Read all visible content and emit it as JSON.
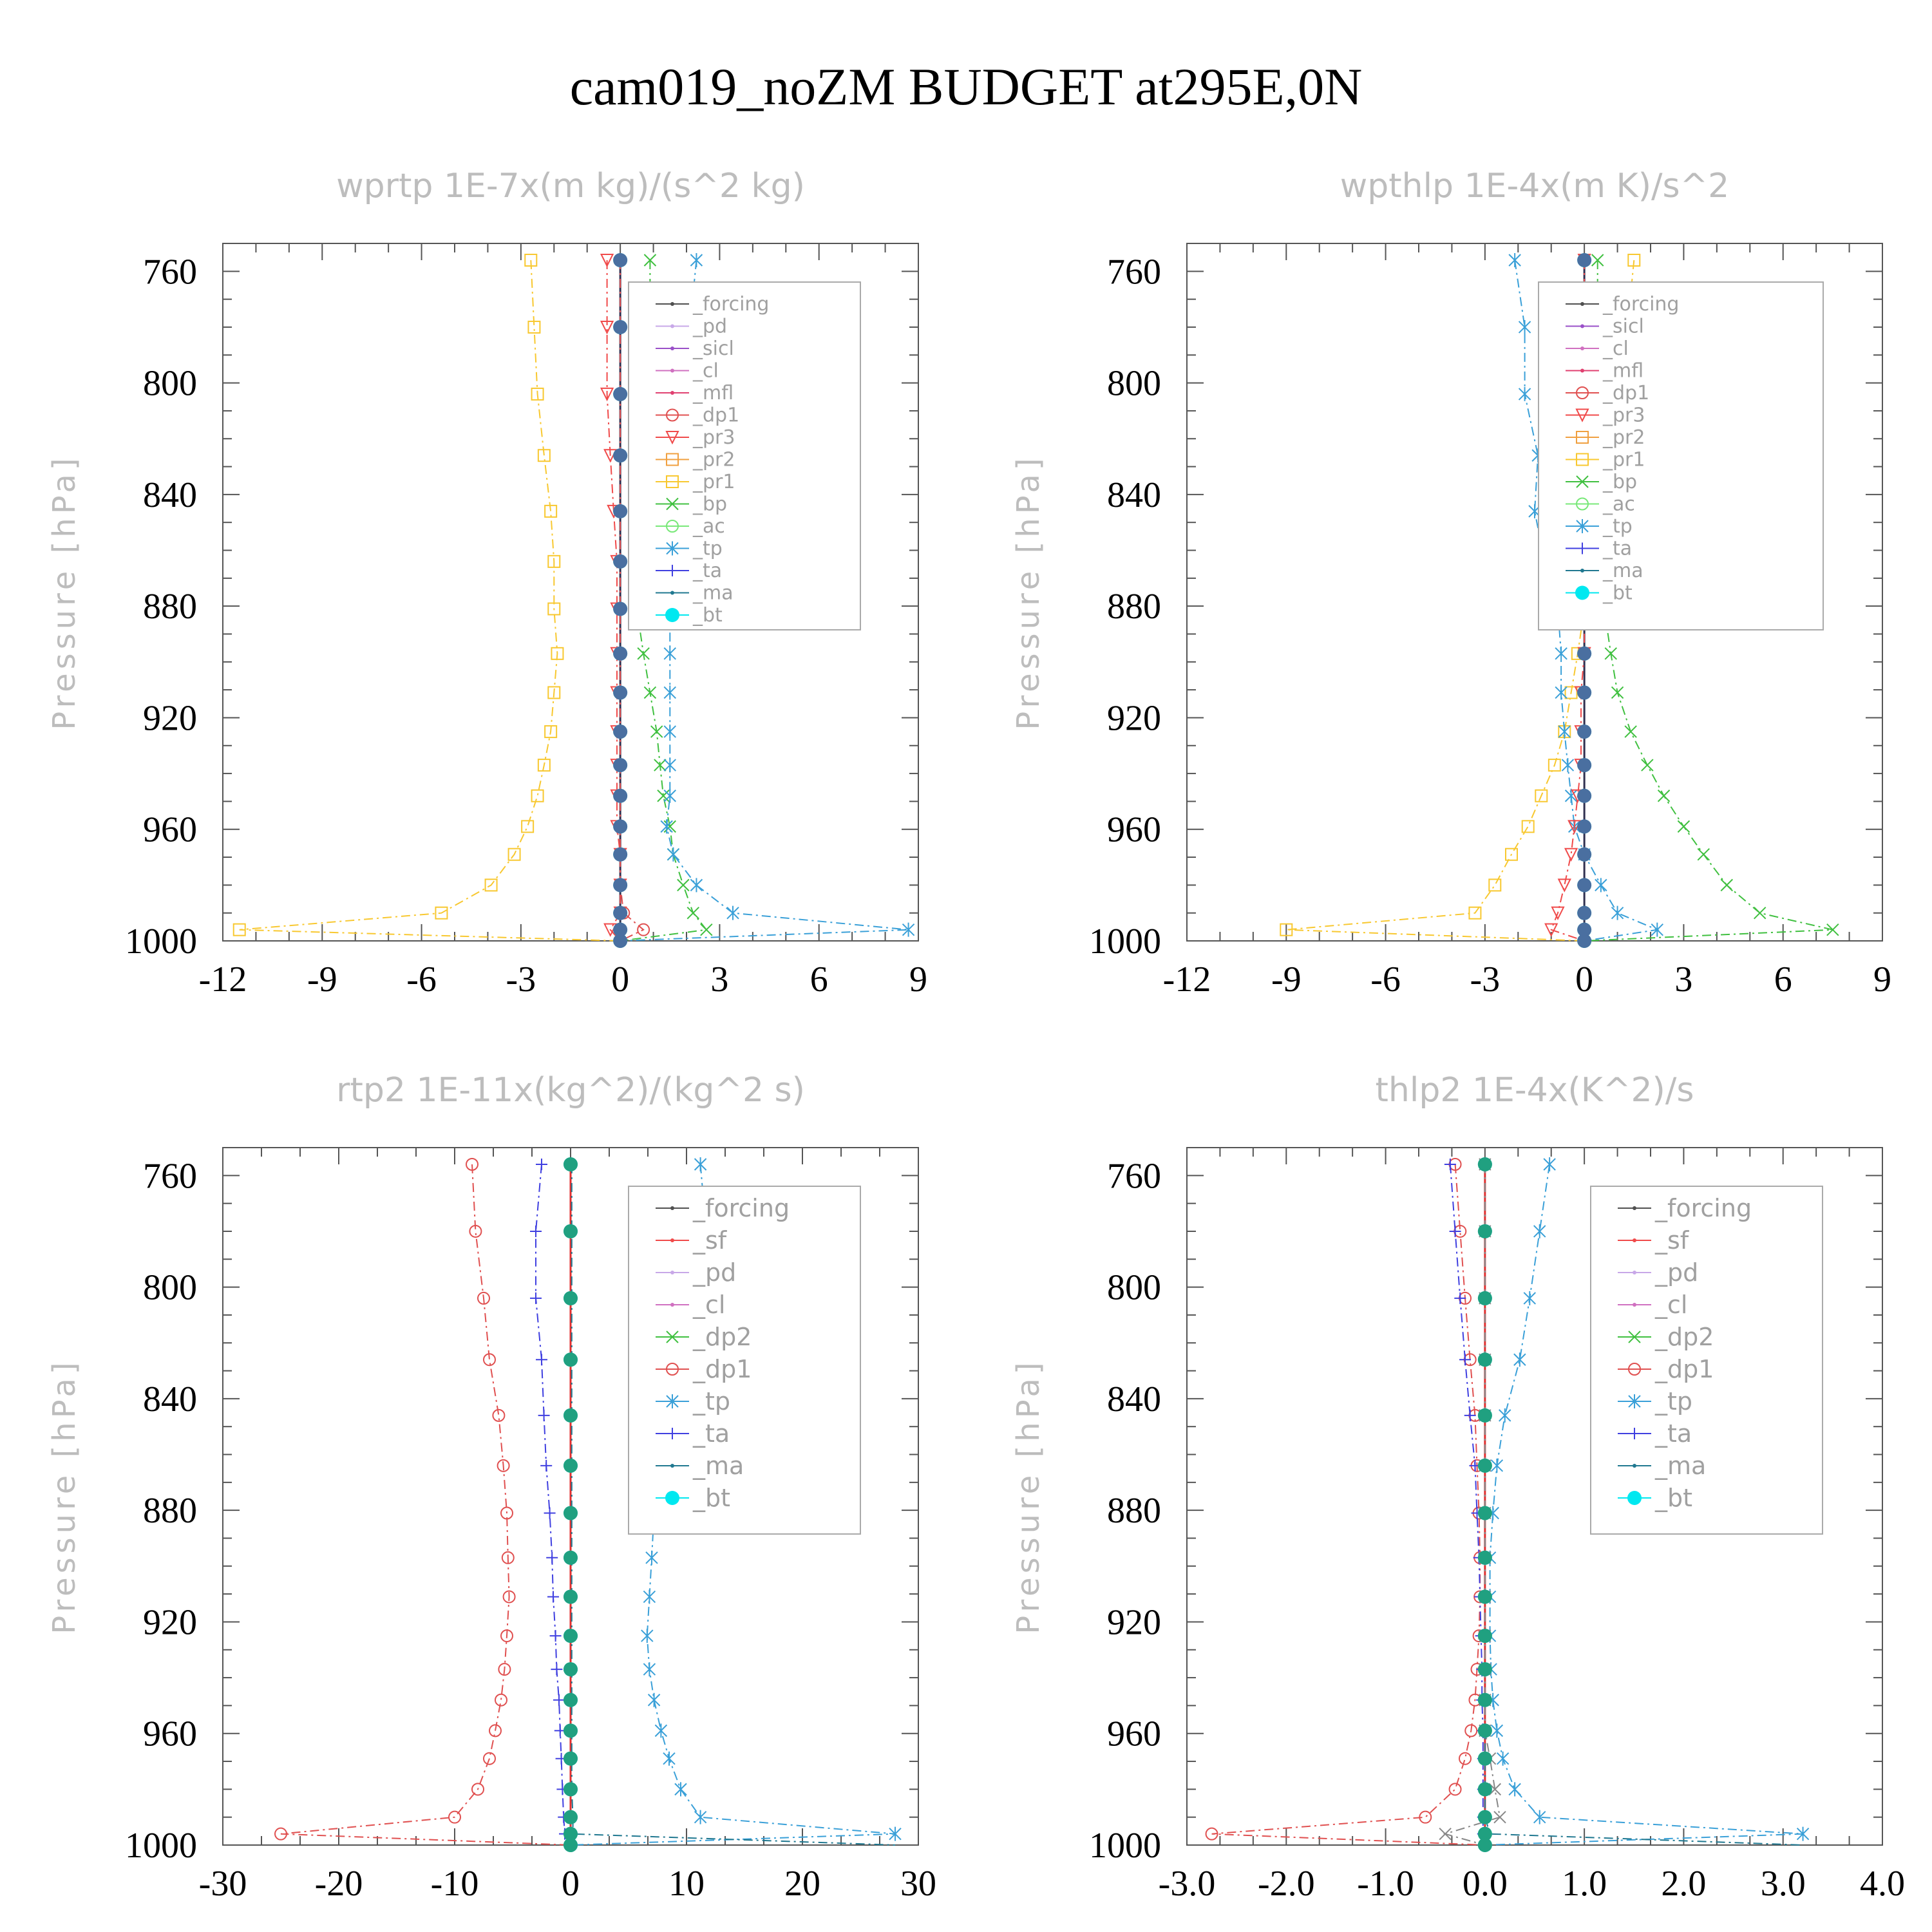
{
  "title": "cam019_noZM  BUDGET at295E,0N",
  "colors": {
    "_forcing": "#505050",
    "_pd": "#c8a8e8",
    "_sicl": "#9a50c8",
    "_cl": "#d070c0",
    "_mfl": "#e04070",
    "_dp1": "#e05050",
    "_pr3": "#f04a4a",
    "_pr2": "#f0a040",
    "_pr1": "#f8c830",
    "_bp": "#40c040",
    "_ac": "#78e878",
    "_tp": "#3aa0d8",
    "_ta": "#4040e0",
    "_ma": "#207890",
    "_bt": "#00e8f0",
    "red": "#e03030",
    "teal": "#20a080",
    "grid": "#555555"
  },
  "chart_data": [
    {
      "type": "line",
      "title": "wprtp   1E-7x(m kg)/(s^2 kg)",
      "ylabel": "Pressure [hPa]",
      "xlim": [
        -12,
        9
      ],
      "xticks": [
        "-12",
        "-9",
        "-6",
        "-3",
        "0",
        "3",
        "6",
        "9"
      ],
      "ylim": [
        1000,
        750
      ],
      "yticks": [
        "760",
        "800",
        "840",
        "880",
        "920",
        "960",
        "1000"
      ],
      "legend": [
        "_forcing",
        "_pd",
        "_sicl",
        "_cl",
        "_mfl",
        "_dp1",
        "_pr3",
        "_pr2",
        "_pr1",
        "_bp",
        "_ac",
        "_tp",
        "_ta",
        "_ma",
        "_bt"
      ],
      "legend_position": "upper right",
      "p": [
        756,
        780,
        804,
        826,
        846,
        864,
        881,
        897,
        911,
        925,
        937,
        948,
        959,
        969,
        980,
        990,
        996,
        1000
      ],
      "series": [
        {
          "name": "_pr1",
          "values": [
            -2.7,
            -2.6,
            -2.5,
            -2.3,
            -2.1,
            -2.0,
            -2.0,
            -1.9,
            -2.0,
            -2.1,
            -2.3,
            -2.5,
            -2.8,
            -3.2,
            -3.9,
            -5.4,
            -11.5,
            0.0
          ]
        },
        {
          "name": "_bp",
          "values": [
            0.9,
            0.9,
            0.9,
            0.6,
            0.5,
            0.5,
            0.5,
            0.7,
            0.9,
            1.1,
            1.2,
            1.3,
            1.5,
            1.6,
            1.9,
            2.2,
            2.6,
            0.0
          ]
        },
        {
          "name": "_tp",
          "values": [
            2.3,
            2.1,
            2.0,
            1.9,
            1.8,
            1.6,
            1.5,
            1.5,
            1.5,
            1.5,
            1.5,
            1.5,
            1.4,
            1.6,
            2.3,
            3.4,
            8.7,
            0.0
          ]
        },
        {
          "name": "_pr3",
          "values": [
            -0.4,
            -0.4,
            -0.4,
            -0.3,
            -0.2,
            -0.1,
            -0.1,
            -0.1,
            -0.1,
            -0.1,
            -0.1,
            -0.1,
            -0.1,
            0.0,
            0.0,
            0.0,
            -0.3,
            0.0
          ]
        },
        {
          "name": "_dp1",
          "values": [
            0.0,
            0.0,
            0.0,
            0.0,
            0.0,
            0.0,
            0.0,
            0.0,
            0.0,
            0.0,
            0.0,
            0.0,
            0.0,
            0.0,
            0.0,
            0.1,
            0.7,
            0.0
          ]
        },
        {
          "name": "_bt",
          "values": [
            0,
            0,
            0,
            0,
            0,
            0,
            0,
            0,
            0,
            0,
            0,
            0,
            0,
            0,
            0,
            0,
            0,
            0
          ]
        }
      ]
    },
    {
      "type": "line",
      "title": "wpthlp   1E-4x(m K)/s^2",
      "ylabel": "Pressure [hPa]",
      "xlim": [
        -12,
        9
      ],
      "xticks": [
        "-12",
        "-9",
        "-6",
        "-3",
        "0",
        "3",
        "6",
        "9"
      ],
      "ylim": [
        1000,
        750
      ],
      "yticks": [
        "760",
        "800",
        "840",
        "880",
        "920",
        "960",
        "1000"
      ],
      "legend": [
        "_forcing",
        "_sicl",
        "_cl",
        "_mfl",
        "_dp1",
        "_pr3",
        "_pr2",
        "_pr1",
        "_bp",
        "_ac",
        "_tp",
        "_ta",
        "_ma",
        "_bt"
      ],
      "legend_position": "upper right",
      "p": [
        756,
        780,
        804,
        826,
        846,
        864,
        881,
        897,
        911,
        925,
        937,
        948,
        959,
        969,
        980,
        990,
        996,
        1000
      ],
      "series": [
        {
          "name": "_pr1",
          "values": [
            1.5,
            1.3,
            1.0,
            0.7,
            0.4,
            0.2,
            0.0,
            -0.2,
            -0.4,
            -0.6,
            -0.9,
            -1.3,
            -1.7,
            -2.2,
            -2.7,
            -3.3,
            -9.0,
            0.0
          ]
        },
        {
          "name": "_bp",
          "values": [
            0.4,
            0.4,
            0.3,
            0.3,
            0.4,
            0.5,
            0.6,
            0.8,
            1.0,
            1.4,
            1.9,
            2.4,
            3.0,
            3.6,
            4.3,
            5.3,
            7.5,
            0.0
          ]
        },
        {
          "name": "_tp",
          "values": [
            -2.1,
            -1.8,
            -1.8,
            -1.4,
            -1.5,
            -1.2,
            -0.8,
            -0.7,
            -0.7,
            -0.6,
            -0.5,
            -0.4,
            -0.3,
            0.0,
            0.5,
            1.0,
            2.2,
            0.0
          ]
        },
        {
          "name": "_pr3",
          "values": [
            0.0,
            0.0,
            0.0,
            0.0,
            0.0,
            0.0,
            0.0,
            0.0,
            -0.1,
            -0.1,
            -0.1,
            -0.2,
            -0.3,
            -0.4,
            -0.6,
            -0.8,
            -1.0,
            0.0
          ]
        },
        {
          "name": "_bt",
          "values": [
            0,
            0,
            0,
            0,
            0,
            0,
            0,
            0,
            0,
            0,
            0,
            0,
            0,
            0,
            0,
            0,
            0,
            0
          ]
        }
      ]
    },
    {
      "type": "line",
      "title": "rtp2   1E-11x(kg^2)/(kg^2 s)",
      "ylabel": "Pressure [hPa]",
      "xlim": [
        -30,
        30
      ],
      "xticks": [
        "-30",
        "-20",
        "-10",
        "0",
        "10",
        "20",
        "30"
      ],
      "ylim": [
        1000,
        750
      ],
      "yticks": [
        "760",
        "800",
        "840",
        "880",
        "920",
        "960",
        "1000"
      ],
      "legend": [
        "_forcing",
        "_sf",
        "_pd",
        "_cl",
        "_dp2",
        "_dp1",
        "_tp",
        "_ta",
        "_ma",
        "_bt"
      ],
      "legend_position": "upper right",
      "p": [
        756,
        780,
        804,
        826,
        846,
        864,
        881,
        897,
        911,
        925,
        937,
        948,
        959,
        969,
        980,
        990,
        996,
        1000
      ],
      "series": [
        {
          "name": "_dp1",
          "values": [
            -8.5,
            -8.2,
            -7.5,
            -7.0,
            -6.2,
            -5.8,
            -5.5,
            -5.4,
            -5.3,
            -5.5,
            -5.7,
            -6.0,
            -6.5,
            -7.0,
            -8.0,
            -10.0,
            -25.0,
            0.0
          ]
        },
        {
          "name": "_tp",
          "values": [
            11.2,
            11.7,
            10.6,
            9.7,
            9.0,
            8.5,
            7.2,
            7.0,
            6.8,
            6.6,
            6.8,
            7.2,
            7.8,
            8.5,
            9.5,
            11.2,
            28.0,
            0.0
          ]
        },
        {
          "name": "_ta",
          "values": [
            -2.5,
            -3.0,
            -3.0,
            -2.5,
            -2.3,
            -2.1,
            -1.8,
            -1.6,
            -1.5,
            -1.3,
            -1.2,
            -1.0,
            -0.9,
            -0.8,
            -0.7,
            -0.6,
            -0.5,
            0.0
          ]
        },
        {
          "name": "_ma",
          "values": [
            0.1,
            0.1,
            0.1,
            0.1,
            0.1,
            0.1,
            0.1,
            0.1,
            0.1,
            0.1,
            0.1,
            0.1,
            0.1,
            0.1,
            0.1,
            0.2,
            0.2,
            28.0
          ]
        },
        {
          "name": "_bt",
          "values": [
            0,
            0,
            0,
            0,
            0,
            0,
            0,
            0,
            0,
            0,
            0,
            0,
            0,
            0,
            0,
            0,
            0,
            0
          ]
        }
      ]
    },
    {
      "type": "line",
      "title": "thlp2   1E-4x(K^2)/s",
      "ylabel": "Pressure [hPa]",
      "xlim": [
        -3.0,
        4.0
      ],
      "xticks": [
        "-3.0",
        "-2.0",
        "-1.0",
        "0.0",
        "1.0",
        "2.0",
        "3.0",
        "4.0"
      ],
      "ylim": [
        1000,
        750
      ],
      "yticks": [
        "760",
        "800",
        "840",
        "880",
        "920",
        "960",
        "1000"
      ],
      "legend": [
        "_forcing",
        "_sf",
        "_pd",
        "_cl",
        "_dp2",
        "_dp1",
        "_tp",
        "_ta",
        "_ma",
        "_bt"
      ],
      "legend_position": "upper right",
      "p": [
        756,
        780,
        804,
        826,
        846,
        864,
        881,
        897,
        911,
        925,
        937,
        948,
        959,
        969,
        980,
        990,
        996,
        1000
      ],
      "series": [
        {
          "name": "_dp1",
          "values": [
            -0.3,
            -0.25,
            -0.2,
            -0.15,
            -0.1,
            -0.08,
            -0.06,
            -0.05,
            -0.05,
            -0.06,
            -0.08,
            -0.1,
            -0.14,
            -0.2,
            -0.3,
            -0.6,
            -2.75,
            0.0
          ]
        },
        {
          "name": "_tp",
          "values": [
            0.65,
            0.55,
            0.45,
            0.35,
            0.2,
            0.12,
            0.08,
            0.05,
            0.05,
            0.05,
            0.06,
            0.08,
            0.12,
            0.18,
            0.3,
            0.55,
            3.2,
            0.0
          ]
        },
        {
          "name": "_ta",
          "values": [
            -0.35,
            -0.3,
            -0.25,
            -0.2,
            -0.15,
            -0.1,
            -0.08,
            -0.06,
            -0.05,
            -0.04,
            -0.03,
            -0.03,
            -0.02,
            -0.02,
            -0.02,
            -0.02,
            -0.02,
            0.0
          ]
        },
        {
          "name": "_ma",
          "values": [
            0.0,
            0.0,
            0.0,
            0.0,
            0.0,
            0.0,
            0.0,
            0.0,
            0.0,
            0.0,
            0.0,
            0.0,
            0.0,
            0.0,
            0.0,
            0.0,
            0.05,
            3.2
          ]
        },
        {
          "name": "_dp2",
          "values": [
            0.0,
            0.0,
            0.0,
            0.0,
            0.0,
            0.0,
            0.0,
            0.0,
            0.0,
            0.0,
            0.0,
            0.0,
            0.0,
            0.05,
            0.1,
            0.15,
            -0.4,
            0.0
          ]
        },
        {
          "name": "_bt",
          "values": [
            0,
            0,
            0,
            0,
            0,
            0,
            0,
            0,
            0,
            0,
            0,
            0,
            0,
            0,
            0,
            0,
            0,
            0
          ]
        }
      ]
    }
  ]
}
